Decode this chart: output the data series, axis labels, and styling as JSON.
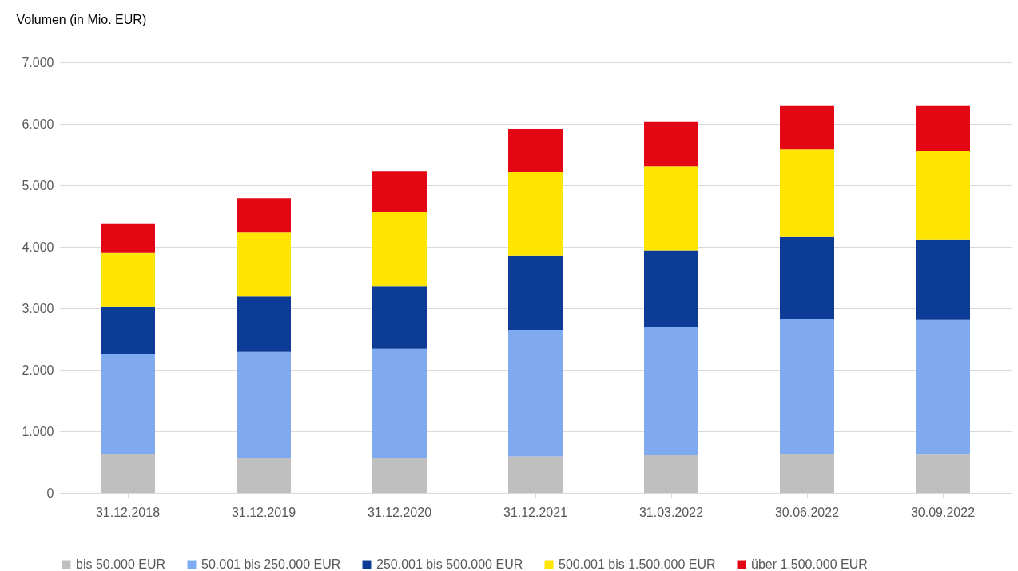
{
  "chart_data": {
    "type": "bar",
    "stacked": true,
    "ylabel": "Volumen (in Mio. EUR)",
    "categories": [
      "31.12.2018",
      "31.12.2019",
      "31.12.2020",
      "31.12.2021",
      "31.03.2022",
      "30.06.2022",
      "30.09.2022"
    ],
    "series": [
      {
        "name": "bis 50.000 EUR",
        "color": "#bfbfbf",
        "values": [
          630,
          560,
          560,
          590,
          610,
          630,
          620
        ]
      },
      {
        "name": "50.001 bis 250.000 EUR",
        "color": "#7faaf0",
        "values": [
          1630,
          1730,
          1780,
          2060,
          2090,
          2200,
          2190
        ]
      },
      {
        "name": "250.001 bis 500.000 EUR",
        "color": "#0c3c96",
        "values": [
          770,
          900,
          1020,
          1210,
          1240,
          1330,
          1310
        ]
      },
      {
        "name": "500.001 bis 1.500.000 EUR",
        "color": "#ffe500",
        "values": [
          870,
          1040,
          1210,
          1360,
          1370,
          1420,
          1440
        ]
      },
      {
        "name": "über 1.500.000 EUR",
        "color": "#e30613",
        "values": [
          480,
          560,
          660,
          700,
          720,
          710,
          730
        ]
      }
    ],
    "ylim": [
      0,
      7000
    ],
    "yticks": [
      0,
      {
        "value": 1000,
        "label": "1.000"
      },
      {
        "value": 2000,
        "label": "2.000"
      },
      {
        "value": 3000,
        "label": "3.000"
      },
      {
        "value": 4000,
        "label": "4.000"
      },
      {
        "value": 5000,
        "label": "5.000"
      },
      {
        "value": 6000,
        "label": "6.000"
      },
      {
        "value": 7000,
        "label": "7.000"
      }
    ],
    "grid": "y",
    "legend": "bottom"
  }
}
